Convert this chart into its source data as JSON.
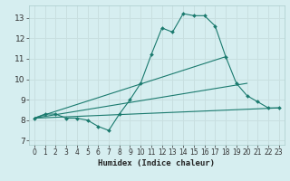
{
  "xlabel": "Humidex (Indice chaleur)",
  "ylabel": "",
  "xlim": [
    -0.5,
    23.5
  ],
  "ylim": [
    6.8,
    13.6
  ],
  "yticks": [
    7,
    8,
    9,
    10,
    11,
    12,
    13
  ],
  "xticks": [
    0,
    1,
    2,
    3,
    4,
    5,
    6,
    7,
    8,
    9,
    10,
    11,
    12,
    13,
    14,
    15,
    16,
    17,
    18,
    19,
    20,
    21,
    22,
    23
  ],
  "bg_color": "#d6eef0",
  "grid_color": "#c8dfe0",
  "line_color": "#1a7a6e",
  "main_line": {
    "x": [
      0,
      1,
      2,
      3,
      4,
      5,
      6,
      7,
      8,
      9,
      10,
      11,
      12,
      13,
      14,
      15,
      16,
      17,
      18,
      19,
      20,
      21,
      22,
      23
    ],
    "y": [
      8.1,
      8.3,
      8.3,
      8.1,
      8.1,
      8.0,
      7.7,
      7.5,
      8.3,
      9.0,
      9.8,
      11.2,
      12.5,
      12.3,
      13.2,
      13.1,
      13.1,
      12.6,
      11.1,
      9.8,
      9.2,
      8.9,
      8.6,
      8.6
    ]
  },
  "trend_lines": [
    {
      "x": [
        0,
        18
      ],
      "y": [
        8.1,
        11.1
      ]
    },
    {
      "x": [
        0,
        20
      ],
      "y": [
        8.1,
        9.8
      ]
    },
    {
      "x": [
        0,
        23
      ],
      "y": [
        8.1,
        8.6
      ]
    }
  ]
}
